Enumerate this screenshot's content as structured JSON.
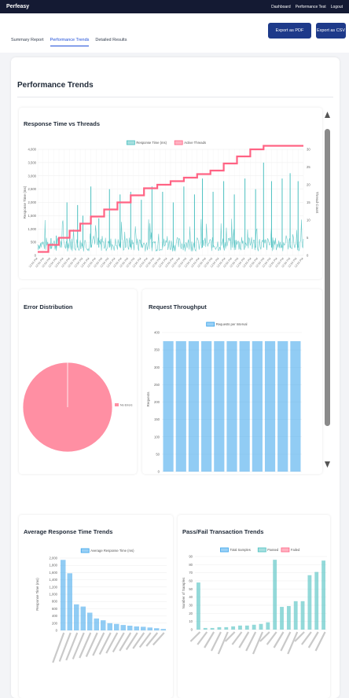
{
  "app": {
    "brand": "Perfeasy"
  },
  "topnav": [
    "Dashboard",
    "Performance Test",
    "Logout"
  ],
  "tabs": [
    {
      "label": "Summary Report",
      "active": false
    },
    {
      "label": "Performance Trends",
      "active": true
    },
    {
      "label": "Detailed Results",
      "active": false
    }
  ],
  "buttons": {
    "export_pdf": "Export as PDF",
    "export_csv": "Export as CSV"
  },
  "page_title": "Performance Trends",
  "colors": {
    "navbar": "#141a33",
    "accent": "#1d4ed8",
    "button": "#1e3a8a",
    "teal": "#4bc0c0",
    "pink": "#ff6384",
    "blue": "#36a2eb",
    "pie": "#ff8fa3"
  },
  "cards": {
    "response_vs_threads": "Response Time vs Threads",
    "error_distribution": "Error Distribution",
    "request_throughput": "Request Throughput",
    "avg_response_trends": "Average Response Time Trends",
    "pass_fail": "Pass/Fail Transaction Trends"
  },
  "chart_data": [
    {
      "id": "response_vs_threads",
      "type": "line",
      "title": "Response Time vs Threads",
      "ylabel": "Response Time (ms)",
      "y2label": "Thread Count",
      "ylim": [
        0,
        4000
      ],
      "y2lim": [
        0,
        30
      ],
      "yticks": [
        "0",
        "500",
        "1,000",
        "1,500",
        "2,000",
        "2,500",
        "3,000",
        "3,500",
        "4,000"
      ],
      "y2ticks": [
        "0",
        "5",
        "10",
        "15",
        "20",
        "25",
        "30"
      ],
      "legend": [
        "Response Time (ms)",
        "Active Threads"
      ],
      "legend_position": "top",
      "grid": true,
      "threads_steps": [
        [
          0,
          1
        ],
        [
          4,
          3
        ],
        [
          8,
          5
        ],
        [
          12,
          7
        ],
        [
          16,
          9
        ],
        [
          20,
          11
        ],
        [
          25,
          13
        ],
        [
          30,
          15
        ],
        [
          35,
          17
        ],
        [
          40,
          19
        ],
        [
          45,
          20
        ],
        [
          50,
          21
        ],
        [
          55,
          22
        ],
        [
          60,
          23
        ],
        [
          65,
          24
        ],
        [
          70,
          26
        ],
        [
          75,
          28
        ],
        [
          80,
          30
        ],
        [
          85,
          31
        ],
        [
          90,
          31
        ],
        [
          100,
          31
        ]
      ],
      "response_spikes": [
        [
          5,
          650
        ],
        [
          7,
          750
        ],
        [
          11,
          2000
        ],
        [
          15,
          1900
        ],
        [
          17,
          1500
        ],
        [
          20,
          2600
        ],
        [
          23,
          1400
        ],
        [
          27,
          2500
        ],
        [
          31,
          2300
        ],
        [
          35,
          2400
        ],
        [
          39,
          2100
        ],
        [
          43,
          2600
        ],
        [
          47,
          2400
        ],
        [
          51,
          2000
        ],
        [
          55,
          2600
        ],
        [
          59,
          2300
        ],
        [
          62,
          2900
        ],
        [
          66,
          2400
        ],
        [
          70,
          2800
        ],
        [
          74,
          2300
        ],
        [
          78,
          2900
        ],
        [
          82,
          2500
        ],
        [
          85,
          3500
        ],
        [
          88,
          2800
        ],
        [
          92,
          2900
        ],
        [
          95,
          3100
        ],
        [
          98,
          2800
        ]
      ]
    },
    {
      "id": "error_distribution",
      "type": "pie",
      "title": "Error Distribution",
      "slices": [
        {
          "label": "No Errors",
          "value": 100
        }
      ],
      "legend_position": "right"
    },
    {
      "id": "request_throughput",
      "type": "bar",
      "title": "Request Throughput",
      "ylabel": "Requests",
      "legend": [
        "Requests per Interval"
      ],
      "legend_position": "top",
      "ylim": [
        0,
        400
      ],
      "yticks": [
        "0",
        "50",
        "100",
        "150",
        "200",
        "250",
        "300",
        "350",
        "400"
      ],
      "values": [
        375,
        375,
        375,
        375,
        375,
        375,
        375,
        375,
        375,
        375,
        375
      ]
    },
    {
      "id": "avg_response_trends",
      "type": "bar",
      "title": "Average Response Time Trends",
      "ylabel": "Response Time (ms)",
      "legend": [
        "Average Response Time (ms)"
      ],
      "legend_position": "top",
      "ylim": [
        0,
        2000
      ],
      "yticks": [
        "0",
        "200",
        "400",
        "600",
        "800",
        "1,000",
        "1,200",
        "1,400",
        "1,600",
        "1,800",
        "2,000"
      ],
      "values": [
        1950,
        1580,
        720,
        660,
        490,
        330,
        280,
        200,
        180,
        150,
        130,
        110,
        100,
        80,
        60,
        40
      ]
    },
    {
      "id": "pass_fail",
      "type": "bar",
      "title": "Pass/Fail Transaction Trends",
      "ylabel": "Number of Samples",
      "legend": [
        "Total Samples",
        "Passed",
        "Failed"
      ],
      "legend_position": "top",
      "ylim": [
        0,
        90
      ],
      "yticks": [
        "0",
        "10",
        "20",
        "30",
        "40",
        "50",
        "60",
        "70",
        "80",
        "90"
      ],
      "values": [
        58,
        2,
        2,
        3,
        3,
        4,
        5,
        5,
        6,
        7,
        9,
        86,
        28,
        29,
        35,
        35,
        67,
        71,
        85
      ]
    }
  ]
}
